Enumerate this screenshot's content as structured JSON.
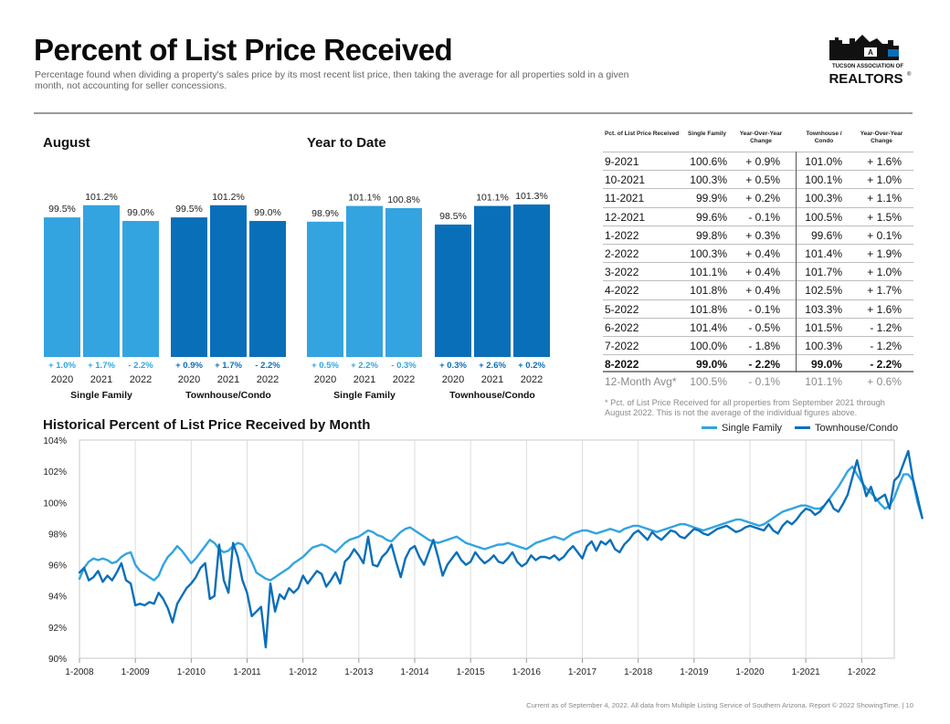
{
  "header": {
    "title": "Percent of List Price Received",
    "subtitle": "Percentage found when dividing a property's sales price by its most recent list price, then taking the average for all properties sold in a given month, not accounting for seller concessions.",
    "logo_line1": "TUCSON ASSOCIATION OF",
    "logo_line2": "REALTORS",
    "logo_reg": "®"
  },
  "colors": {
    "single_family": "#33a4e0",
    "townhouse": "#0a6fb9",
    "text": "#111111",
    "muted": "#8a8a8a"
  },
  "chart_data": [
    {
      "type": "bar",
      "title": "August",
      "groups": [
        {
          "name": "Single Family",
          "categories": [
            "2020",
            "2021",
            "2022"
          ],
          "values": [
            99.5,
            101.2,
            99.0
          ],
          "value_labels": [
            "99.5%",
            "101.2%",
            "99.0%"
          ],
          "changes": [
            "+ 1.0%",
            "+ 1.7%",
            "- 2.2%"
          ]
        },
        {
          "name": "Townhouse/Condo",
          "categories": [
            "2020",
            "2021",
            "2022"
          ],
          "values": [
            99.5,
            101.2,
            99.0
          ],
          "value_labels": [
            "99.5%",
            "101.2%",
            "99.0%"
          ],
          "changes": [
            "+ 0.9%",
            "+ 1.7%",
            "- 2.2%"
          ]
        }
      ]
    },
    {
      "type": "bar",
      "title": "Year to Date",
      "groups": [
        {
          "name": "Single Family",
          "categories": [
            "2020",
            "2021",
            "2022"
          ],
          "values": [
            98.9,
            101.1,
            100.8
          ],
          "value_labels": [
            "98.9%",
            "101.1%",
            "100.8%"
          ],
          "changes": [
            "+ 0.5%",
            "+ 2.2%",
            "- 0.3%"
          ]
        },
        {
          "name": "Townhouse/Condo",
          "categories": [
            "2020",
            "2021",
            "2022"
          ],
          "values": [
            98.5,
            101.1,
            101.3
          ],
          "value_labels": [
            "98.5%",
            "101.1%",
            "101.3%"
          ],
          "changes": [
            "+ 0.3%",
            "+ 2.6%",
            "+ 0.2%"
          ]
        }
      ]
    },
    {
      "type": "table",
      "columns": [
        "Pct. of List Price Received",
        "Single Family",
        "Year-Over-Year Change",
        "Townhouse / Condo",
        "Year-Over-Year Change"
      ],
      "rows": [
        [
          "9-2021",
          "100.6%",
          "+ 0.9%",
          "101.0%",
          "+ 1.6%"
        ],
        [
          "10-2021",
          "100.3%",
          "+ 0.5%",
          "100.1%",
          "+ 1.0%"
        ],
        [
          "11-2021",
          "99.9%",
          "+ 0.2%",
          "100.3%",
          "+ 1.1%"
        ],
        [
          "12-2021",
          "99.6%",
          "- 0.1%",
          "100.5%",
          "+ 1.5%"
        ],
        [
          "1-2022",
          "99.8%",
          "+ 0.3%",
          "99.6%",
          "+ 0.1%"
        ],
        [
          "2-2022",
          "100.3%",
          "+ 0.4%",
          "101.4%",
          "+ 1.9%"
        ],
        [
          "3-2022",
          "101.1%",
          "+ 0.4%",
          "101.7%",
          "+ 1.0%"
        ],
        [
          "4-2022",
          "101.8%",
          "+ 0.4%",
          "102.5%",
          "+ 1.7%"
        ],
        [
          "5-2022",
          "101.8%",
          "- 0.1%",
          "103.3%",
          "+ 1.6%"
        ],
        [
          "6-2022",
          "101.4%",
          "- 0.5%",
          "101.5%",
          "- 1.2%"
        ],
        [
          "7-2022",
          "100.0%",
          "- 1.8%",
          "100.3%",
          "- 1.2%"
        ],
        [
          "8-2022",
          "99.0%",
          "- 2.2%",
          "99.0%",
          "- 2.2%"
        ]
      ],
      "avg_row": [
        "12-Month Avg*",
        "100.5%",
        "- 0.1%",
        "101.1%",
        "+ 0.6%"
      ],
      "note": "* Pct. of List Price Received for all properties from September 2021 through August 2022. This is not the average of the individual figures above."
    },
    {
      "type": "line",
      "title": "Historical Percent of List Price Received by Month",
      "x_ticks": [
        "1-2008",
        "1-2009",
        "1-2010",
        "1-2011",
        "1-2012",
        "1-2013",
        "1-2014",
        "1-2015",
        "1-2016",
        "1-2017",
        "1-2018",
        "1-2019",
        "1-2020",
        "1-2021",
        "1-2022"
      ],
      "y_ticks": [
        "90%",
        "92%",
        "94%",
        "96%",
        "98%",
        "100%",
        "102%",
        "104%"
      ],
      "ylim": [
        90,
        104
      ],
      "xlim": [
        "2008-01",
        "2022-08"
      ],
      "legend": "top-right",
      "grid": "vertical",
      "series": [
        {
          "name": "Single Family",
          "x_start": "2008-01",
          "values": [
            95.1,
            95.8,
            96.2,
            96.4,
            96.3,
            96.4,
            96.3,
            96.1,
            96.2,
            96.5,
            96.7,
            96.8,
            96.0,
            95.6,
            95.4,
            95.2,
            95.0,
            95.3,
            96.0,
            96.5,
            96.8,
            97.2,
            96.9,
            96.5,
            96.1,
            96.4,
            96.8,
            97.2,
            97.6,
            97.4,
            97.0,
            96.8,
            96.9,
            97.2,
            97.4,
            97.3,
            96.8,
            96.2,
            95.5,
            95.3,
            95.1,
            95.0,
            95.2,
            95.4,
            95.6,
            95.8,
            96.1,
            96.3,
            96.5,
            96.8,
            97.1,
            97.2,
            97.3,
            97.2,
            97.0,
            96.8,
            97.1,
            97.4,
            97.6,
            97.7,
            97.8,
            98.0,
            98.2,
            98.1,
            97.9,
            97.8,
            97.6,
            97.5,
            97.8,
            98.1,
            98.3,
            98.4,
            98.2,
            98.0,
            97.8,
            97.6,
            97.5,
            97.4,
            97.5,
            97.6,
            97.7,
            97.8,
            97.6,
            97.4,
            97.3,
            97.2,
            97.1,
            97.0,
            97.1,
            97.2,
            97.3,
            97.3,
            97.4,
            97.3,
            97.2,
            97.1,
            97.0,
            97.2,
            97.4,
            97.5,
            97.6,
            97.7,
            97.8,
            97.7,
            97.6,
            97.8,
            98.0,
            98.1,
            98.2,
            98.2,
            98.1,
            98.0,
            98.1,
            98.2,
            98.3,
            98.2,
            98.1,
            98.3,
            98.4,
            98.5,
            98.5,
            98.4,
            98.3,
            98.2,
            98.1,
            98.2,
            98.3,
            98.4,
            98.5,
            98.6,
            98.6,
            98.5,
            98.4,
            98.3,
            98.2,
            98.3,
            98.4,
            98.5,
            98.6,
            98.7,
            98.8,
            98.9,
            98.9,
            98.8,
            98.7,
            98.6,
            98.5,
            98.6,
            98.8,
            99.0,
            99.2,
            99.4,
            99.5,
            99.6,
            99.7,
            99.8,
            99.8,
            99.7,
            99.6,
            99.6,
            99.8,
            100.2,
            100.6,
            101.0,
            101.5,
            102.0,
            102.3,
            101.8,
            101.3,
            100.9,
            100.6,
            100.3,
            99.9,
            99.6,
            99.8,
            100.3,
            101.1,
            101.8,
            101.8,
            101.4,
            100.0,
            99.0
          ],
          "note": "monthly values starting 2008-01, estimated from the chart"
        },
        {
          "name": "Townhouse/Condo",
          "x_start": "2008-01",
          "values": [
            95.5,
            95.8,
            95.0,
            95.2,
            95.6,
            94.9,
            95.3,
            95.0,
            95.5,
            96.1,
            95.0,
            94.8,
            93.4,
            93.5,
            93.4,
            93.6,
            93.5,
            94.2,
            93.8,
            93.2,
            92.3,
            93.5,
            94.0,
            94.5,
            94.8,
            95.2,
            95.8,
            96.1,
            93.8,
            94.0,
            97.3,
            95.0,
            94.2,
            97.4,
            96.5,
            95.0,
            94.2,
            92.7,
            93.0,
            93.3,
            90.7,
            94.8,
            93.0,
            94.1,
            93.8,
            94.5,
            94.2,
            94.5,
            95.3,
            94.8,
            95.2,
            95.6,
            95.4,
            94.6,
            95.0,
            95.5,
            94.8,
            96.2,
            96.5,
            97.0,
            96.6,
            96.1,
            97.8,
            96.0,
            95.9,
            96.5,
            96.8,
            97.3,
            96.2,
            95.2,
            96.4,
            97.0,
            97.2,
            96.5,
            96.0,
            96.8,
            97.6,
            96.5,
            95.3,
            96.0,
            96.4,
            96.8,
            96.3,
            96.0,
            96.2,
            96.8,
            96.4,
            96.1,
            96.3,
            96.6,
            96.2,
            96.1,
            96.4,
            96.8,
            96.2,
            95.9,
            96.1,
            96.6,
            96.3,
            96.5,
            96.5,
            96.4,
            96.6,
            96.3,
            96.5,
            96.9,
            97.2,
            96.8,
            96.4,
            97.2,
            97.5,
            96.9,
            97.5,
            97.3,
            97.6,
            97.0,
            96.8,
            97.3,
            97.6,
            98.0,
            98.2,
            97.9,
            97.6,
            98.1,
            97.8,
            97.6,
            97.9,
            98.2,
            98.1,
            97.8,
            97.7,
            98.0,
            98.3,
            98.2,
            98.0,
            97.9,
            98.1,
            98.3,
            98.4,
            98.5,
            98.3,
            98.1,
            98.2,
            98.4,
            98.5,
            98.4,
            98.3,
            98.2,
            98.6,
            98.2,
            98.0,
            98.5,
            98.8,
            98.6,
            98.9,
            99.3,
            99.6,
            99.5,
            99.2,
            99.4,
            99.8,
            100.2,
            99.6,
            99.4,
            99.9,
            100.5,
            101.6,
            102.7,
            101.5,
            100.4,
            101.0,
            100.1,
            100.3,
            100.5,
            99.6,
            101.4,
            101.7,
            102.5,
            103.3,
            101.5,
            100.3,
            99.0
          ],
          "note": "monthly values starting 2008-01, estimated from the chart"
        }
      ]
    }
  ],
  "footer": "Current as of September 4, 2022. All data from Multiple Listing Service of Southern Arizona. Report © 2022 ShowingTime.  |  10"
}
